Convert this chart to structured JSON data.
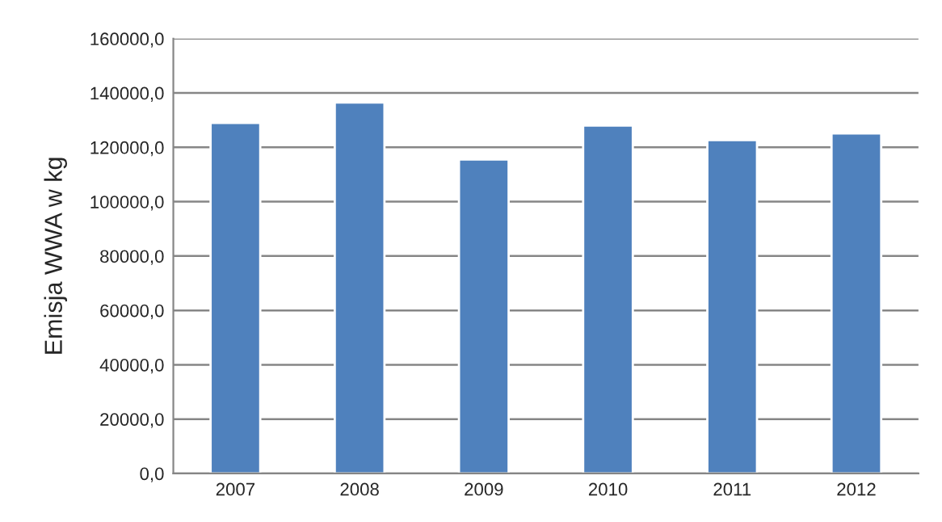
{
  "chart_data": {
    "type": "bar",
    "ylabel": "Emisja WWA w kg",
    "categories": [
      "2007",
      "2008",
      "2009",
      "2010",
      "2011",
      "2012"
    ],
    "series": [
      {
        "color": "#4f81bd",
        "values": [
          129000,
          136500,
          115500,
          128000,
          122700,
          125100
        ]
      }
    ],
    "ylim": [
      0,
      160000
    ],
    "yticks": [
      {
        "value": 0,
        "label": "0,0"
      },
      {
        "value": 20000,
        "label": "20000,0"
      },
      {
        "value": 40000,
        "label": "40000,0"
      },
      {
        "value": 60000,
        "label": "60000,0"
      },
      {
        "value": 80000,
        "label": "80000,0"
      },
      {
        "value": 100000,
        "label": "100000,0"
      },
      {
        "value": 120000,
        "label": "120000,0"
      },
      {
        "value": 140000,
        "label": "140000,0"
      },
      {
        "value": 160000,
        "label": "160000,0"
      }
    ],
    "grid": "y"
  }
}
